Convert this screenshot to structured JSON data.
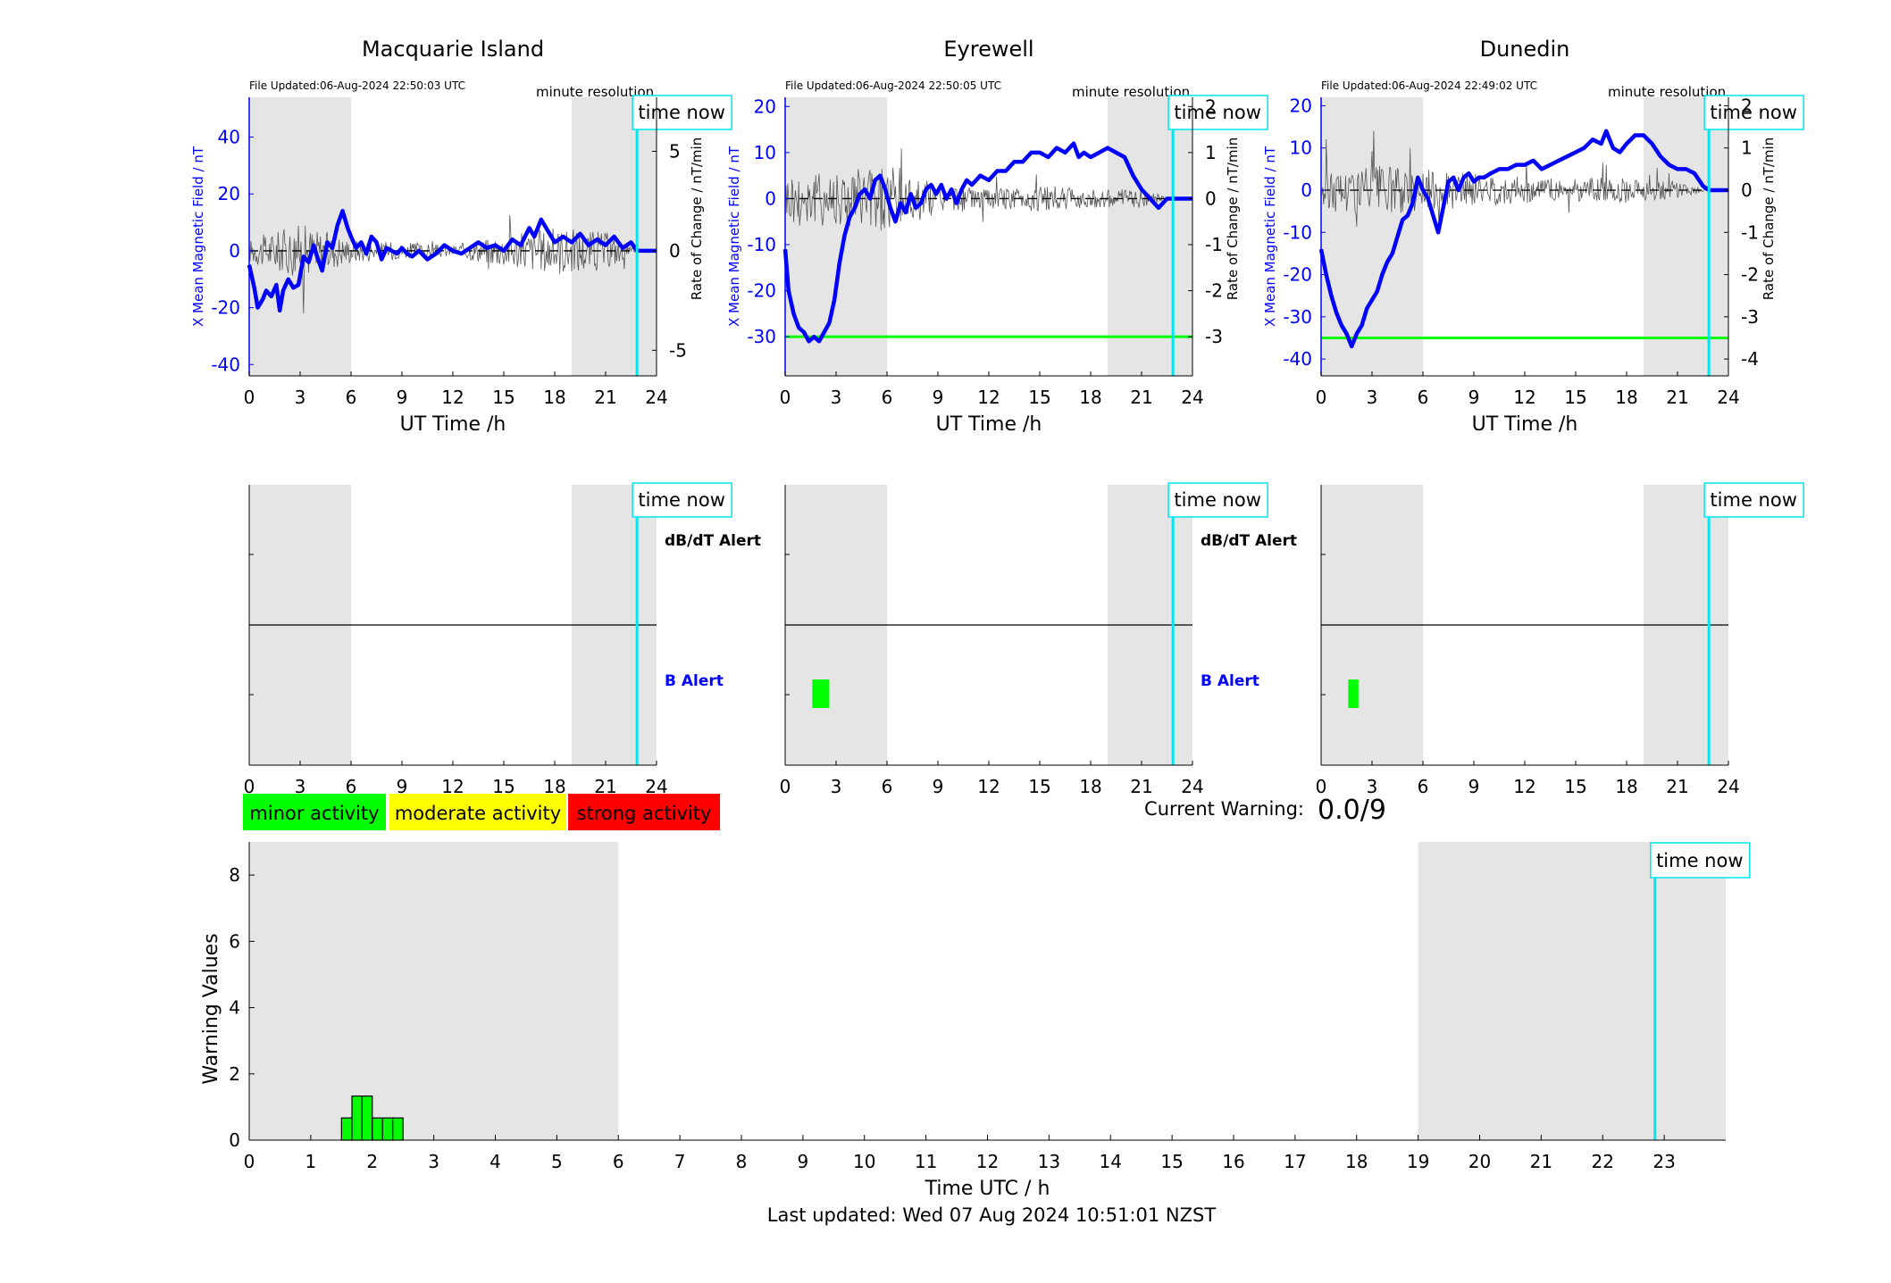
{
  "page": {
    "footer_text": "Last updated: Wed 07 Aug 2024 10:51:01 NZST"
  },
  "labels": {
    "time_now": "time now",
    "minute_resolution": "minute resolution",
    "ut_time_xlabel": "UT Time /h",
    "left_ylabel": "X Mean Magnetic Field / nT",
    "right_ylabel": "Rate of Change / nT/min",
    "dbdt_alert": "dB/dT Alert",
    "b_alert": "B Alert",
    "current_warning_label": "Current Warning:",
    "current_warning_value": "0.0/9"
  },
  "legend": [
    {
      "label": "minor activity",
      "color": "#00ff00"
    },
    {
      "label": "moderate activity",
      "color": "#ffff00"
    },
    {
      "label": "strong activity",
      "color": "#ff0000"
    }
  ],
  "colors": {
    "field_line": "#0000ff",
    "rate_line": "#555555",
    "threshold": "#00ff00",
    "time_now": "#00e5ee",
    "night_shade": "#e5e5e5",
    "alert_bar": "#00ff00"
  },
  "stations": [
    {
      "name": "Macquarie Island",
      "file_updated": "File Updated:06-Aug-2024 22:50:03 UTC",
      "left_ylim": [
        -44,
        54
      ],
      "left_ticks": [
        -40,
        -20,
        0,
        20,
        40
      ],
      "right_ylim": [
        -6.286,
        7.714
      ],
      "right_ticks": [
        -5,
        0,
        5
      ],
      "night_shading": [
        [
          0,
          6
        ],
        [
          19,
          24
        ]
      ],
      "time_now": 22.85,
      "b_threshold": null,
      "field_series": [
        [
          0,
          -5
        ],
        [
          0.3,
          -13
        ],
        [
          0.5,
          -20
        ],
        [
          0.8,
          -17
        ],
        [
          1.0,
          -14
        ],
        [
          1.3,
          -16
        ],
        [
          1.6,
          -12
        ],
        [
          1.8,
          -21
        ],
        [
          2.0,
          -14
        ],
        [
          2.3,
          -10
        ],
        [
          2.6,
          -13
        ],
        [
          2.9,
          -12
        ],
        [
          3.2,
          -2
        ],
        [
          3.5,
          -4
        ],
        [
          3.8,
          2
        ],
        [
          4.0,
          -2
        ],
        [
          4.3,
          -7
        ],
        [
          4.6,
          3
        ],
        [
          4.9,
          1
        ],
        [
          5.2,
          9
        ],
        [
          5.5,
          14
        ],
        [
          5.8,
          8
        ],
        [
          6.0,
          5
        ],
        [
          6.3,
          1
        ],
        [
          6.6,
          3
        ],
        [
          6.9,
          -1
        ],
        [
          7.2,
          5
        ],
        [
          7.5,
          3
        ],
        [
          7.8,
          -3
        ],
        [
          8.1,
          1
        ],
        [
          8.4,
          0
        ],
        [
          8.7,
          -1
        ],
        [
          9.0,
          1
        ],
        [
          9.3,
          -1
        ],
        [
          9.6,
          -2
        ],
        [
          10.0,
          0
        ],
        [
          10.5,
          -3
        ],
        [
          11.0,
          -1
        ],
        [
          11.5,
          2
        ],
        [
          12.0,
          0
        ],
        [
          12.5,
          -1
        ],
        [
          13.0,
          1
        ],
        [
          13.5,
          3
        ],
        [
          14.0,
          1
        ],
        [
          14.5,
          2
        ],
        [
          15.0,
          0
        ],
        [
          15.5,
          4
        ],
        [
          16.0,
          2
        ],
        [
          16.5,
          8
        ],
        [
          16.8,
          5
        ],
        [
          17.2,
          11
        ],
        [
          17.6,
          7
        ],
        [
          18.0,
          3
        ],
        [
          18.5,
          5
        ],
        [
          19.0,
          3
        ],
        [
          19.5,
          6
        ],
        [
          20.0,
          2
        ],
        [
          20.5,
          4
        ],
        [
          21.0,
          2
        ],
        [
          21.5,
          5
        ],
        [
          22.0,
          1
        ],
        [
          22.5,
          3
        ],
        [
          22.85,
          0
        ],
        [
          24,
          0
        ]
      ],
      "rate_noise": [
        [
          0,
          0.6
        ],
        [
          3,
          1.4
        ],
        [
          6,
          0.6
        ],
        [
          9,
          0.4
        ],
        [
          12,
          0.3
        ],
        [
          15,
          0.8
        ],
        [
          18,
          1.2
        ],
        [
          21,
          1.0
        ],
        [
          22.85,
          0
        ]
      ],
      "b_alert_bars": []
    },
    {
      "name": "Eyrewell",
      "file_updated": "File Updated:06-Aug-2024 22:50:05 UTC",
      "left_ylim": [
        -38.5,
        22
      ],
      "left_ticks": [
        -30,
        -20,
        -10,
        0,
        10,
        20
      ],
      "right_ylim": [
        -3.85,
        2.2
      ],
      "right_ticks": [
        -3,
        -2,
        -1,
        0,
        1,
        2
      ],
      "night_shading": [
        [
          0,
          6
        ],
        [
          19,
          24
        ]
      ],
      "time_now": 22.85,
      "b_threshold": -30,
      "field_series": [
        [
          0,
          -11
        ],
        [
          0.2,
          -20
        ],
        [
          0.5,
          -25
        ],
        [
          0.8,
          -28
        ],
        [
          1.1,
          -29
        ],
        [
          1.4,
          -31
        ],
        [
          1.7,
          -30
        ],
        [
          2.0,
          -31
        ],
        [
          2.3,
          -29
        ],
        [
          2.6,
          -27
        ],
        [
          2.9,
          -22
        ],
        [
          3.2,
          -14
        ],
        [
          3.5,
          -8
        ],
        [
          3.8,
          -4
        ],
        [
          4.1,
          -2
        ],
        [
          4.4,
          1
        ],
        [
          4.7,
          2
        ],
        [
          5.0,
          0
        ],
        [
          5.3,
          4
        ],
        [
          5.6,
          5
        ],
        [
          5.9,
          2
        ],
        [
          6.2,
          -2
        ],
        [
          6.5,
          -5
        ],
        [
          6.8,
          -1
        ],
        [
          7.1,
          -3
        ],
        [
          7.4,
          1
        ],
        [
          7.7,
          -2
        ],
        [
          8.0,
          -1
        ],
        [
          8.3,
          2
        ],
        [
          8.6,
          3
        ],
        [
          8.9,
          1
        ],
        [
          9.2,
          3
        ],
        [
          9.5,
          0
        ],
        [
          9.8,
          2
        ],
        [
          10.1,
          -1
        ],
        [
          10.4,
          2
        ],
        [
          10.7,
          4
        ],
        [
          11.0,
          3
        ],
        [
          11.5,
          5
        ],
        [
          12.0,
          4
        ],
        [
          12.5,
          6
        ],
        [
          13.0,
          6
        ],
        [
          13.5,
          8
        ],
        [
          14.0,
          8
        ],
        [
          14.5,
          10
        ],
        [
          15.0,
          10
        ],
        [
          15.5,
          9
        ],
        [
          16.0,
          11
        ],
        [
          16.5,
          10
        ],
        [
          17.0,
          12
        ],
        [
          17.3,
          9
        ],
        [
          17.6,
          10
        ],
        [
          18.0,
          9
        ],
        [
          18.5,
          10
        ],
        [
          19.0,
          11
        ],
        [
          19.5,
          10
        ],
        [
          20.0,
          9
        ],
        [
          20.5,
          5
        ],
        [
          21.0,
          2
        ],
        [
          21.5,
          0
        ],
        [
          22.0,
          -2
        ],
        [
          22.5,
          0
        ],
        [
          22.85,
          0
        ],
        [
          24,
          0
        ]
      ],
      "rate_noise": [
        [
          0,
          0.6
        ],
        [
          3,
          0.6
        ],
        [
          6,
          0.8
        ],
        [
          9,
          0.3
        ],
        [
          12,
          0.2
        ],
        [
          15,
          0.3
        ],
        [
          18,
          0.2
        ],
        [
          21,
          0.2
        ],
        [
          22.85,
          0
        ]
      ],
      "b_alert_bars": [
        [
          1.6,
          2.6
        ]
      ]
    },
    {
      "name": "Dunedin",
      "file_updated": "File Updated:06-Aug-2024 22:49:02 UTC",
      "left_ylim": [
        -44,
        22
      ],
      "left_ticks": [
        -40,
        -30,
        -20,
        -10,
        0,
        10,
        20
      ],
      "right_ylim": [
        -4.4,
        2.2
      ],
      "right_ticks": [
        -4,
        -3,
        -2,
        -1,
        0,
        1,
        2
      ],
      "night_shading": [
        [
          0,
          6
        ],
        [
          19,
          24
        ]
      ],
      "time_now": 22.85,
      "b_threshold": -35,
      "field_series": [
        [
          0,
          -14
        ],
        [
          0.3,
          -20
        ],
        [
          0.6,
          -25
        ],
        [
          0.9,
          -29
        ],
        [
          1.2,
          -32
        ],
        [
          1.5,
          -34
        ],
        [
          1.8,
          -37
        ],
        [
          2.1,
          -34
        ],
        [
          2.4,
          -32
        ],
        [
          2.7,
          -28
        ],
        [
          3.0,
          -26
        ],
        [
          3.3,
          -24
        ],
        [
          3.6,
          -20
        ],
        [
          3.9,
          -17
        ],
        [
          4.2,
          -15
        ],
        [
          4.5,
          -11
        ],
        [
          4.8,
          -7
        ],
        [
          5.1,
          -6
        ],
        [
          5.4,
          -3
        ],
        [
          5.7,
          3
        ],
        [
          6.0,
          0
        ],
        [
          6.3,
          -2
        ],
        [
          6.6,
          -6
        ],
        [
          6.9,
          -10
        ],
        [
          7.2,
          -4
        ],
        [
          7.5,
          2
        ],
        [
          7.8,
          3
        ],
        [
          8.1,
          0
        ],
        [
          8.4,
          3
        ],
        [
          8.7,
          4
        ],
        [
          9.0,
          2
        ],
        [
          9.3,
          3
        ],
        [
          9.6,
          3
        ],
        [
          10.0,
          4
        ],
        [
          10.5,
          5
        ],
        [
          11.0,
          5
        ],
        [
          11.5,
          6
        ],
        [
          12.0,
          6
        ],
        [
          12.5,
          7
        ],
        [
          13.0,
          5
        ],
        [
          13.5,
          6
        ],
        [
          14.0,
          7
        ],
        [
          14.5,
          8
        ],
        [
          15.0,
          9
        ],
        [
          15.5,
          10
        ],
        [
          16.0,
          12
        ],
        [
          16.5,
          11
        ],
        [
          16.8,
          14
        ],
        [
          17.2,
          10
        ],
        [
          17.6,
          9
        ],
        [
          18.0,
          11
        ],
        [
          18.5,
          13
        ],
        [
          19.0,
          13
        ],
        [
          19.5,
          11
        ],
        [
          20.0,
          8
        ],
        [
          20.5,
          6
        ],
        [
          21.0,
          5
        ],
        [
          21.5,
          5
        ],
        [
          22.0,
          4
        ],
        [
          22.5,
          1
        ],
        [
          22.85,
          0
        ],
        [
          24,
          0
        ]
      ],
      "rate_noise": [
        [
          0,
          0.5
        ],
        [
          3,
          0.6
        ],
        [
          6,
          0.5
        ],
        [
          9,
          0.4
        ],
        [
          12,
          0.3
        ],
        [
          15,
          0.3
        ],
        [
          18,
          0.3
        ],
        [
          21,
          0.2
        ],
        [
          22.85,
          0
        ]
      ],
      "b_alert_bars": [
        [
          1.6,
          2.2
        ]
      ]
    }
  ],
  "chart_data": [
    {
      "type": "bar",
      "title": "",
      "xlabel": "Time UTC / h",
      "ylabel": "Warning Values",
      "xlim": [
        0,
        24
      ],
      "ylim": [
        0,
        9
      ],
      "xticks": [
        0,
        1,
        2,
        3,
        4,
        5,
        6,
        7,
        8,
        9,
        10,
        11,
        12,
        13,
        14,
        15,
        16,
        17,
        18,
        19,
        20,
        21,
        22,
        23
      ],
      "yticks": [
        0,
        2,
        4,
        6,
        8
      ],
      "night_shading": [
        [
          0,
          6
        ],
        [
          19,
          24
        ]
      ],
      "time_now": 22.85,
      "bars": [
        {
          "x0": 1.5,
          "x1": 1.67,
          "value": 0.67
        },
        {
          "x0": 1.67,
          "x1": 2.0,
          "value": 1.33
        },
        {
          "x0": 2.0,
          "x1": 2.5,
          "value": 0.67
        }
      ]
    }
  ]
}
